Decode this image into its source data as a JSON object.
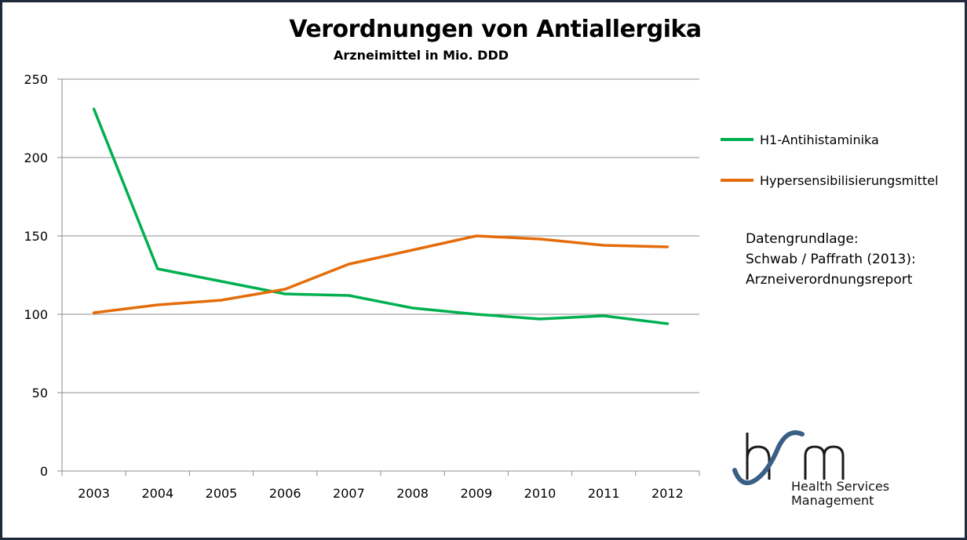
{
  "chart_data": {
    "type": "line",
    "title": "Verordnungen von Antiallergika",
    "subtitle": "Arzneimittel in Mio. DDD",
    "categories": [
      "2003",
      "2004",
      "2005",
      "2006",
      "2007",
      "2008",
      "2009",
      "2010",
      "2011",
      "2012"
    ],
    "ylim": [
      0,
      250
    ],
    "yticks": [
      0,
      50,
      100,
      150,
      200,
      250
    ],
    "grid": true,
    "legend_position": "right",
    "series": [
      {
        "name": "H1-Antihistaminika",
        "color": "#00b050",
        "values": [
          231,
          129,
          121,
          113,
          112,
          104,
          100,
          97,
          99,
          94
        ]
      },
      {
        "name": "Hypersensibilisierungsmittel",
        "color": "#e46c0a",
        "values": [
          101,
          106,
          109,
          116,
          132,
          141,
          150,
          148,
          144,
          143
        ]
      }
    ]
  },
  "source_note": {
    "lines": [
      "Datengrundlage:",
      "Schwab / Paffrath (2013):",
      "Arzneiverordnungsreport"
    ]
  },
  "logo": {
    "text_line1": "Health Services",
    "text_line2": "Management",
    "mark": "h/m"
  },
  "colors": {
    "frame": "#1f2a3a",
    "logo_blue": "#3a5f86"
  }
}
